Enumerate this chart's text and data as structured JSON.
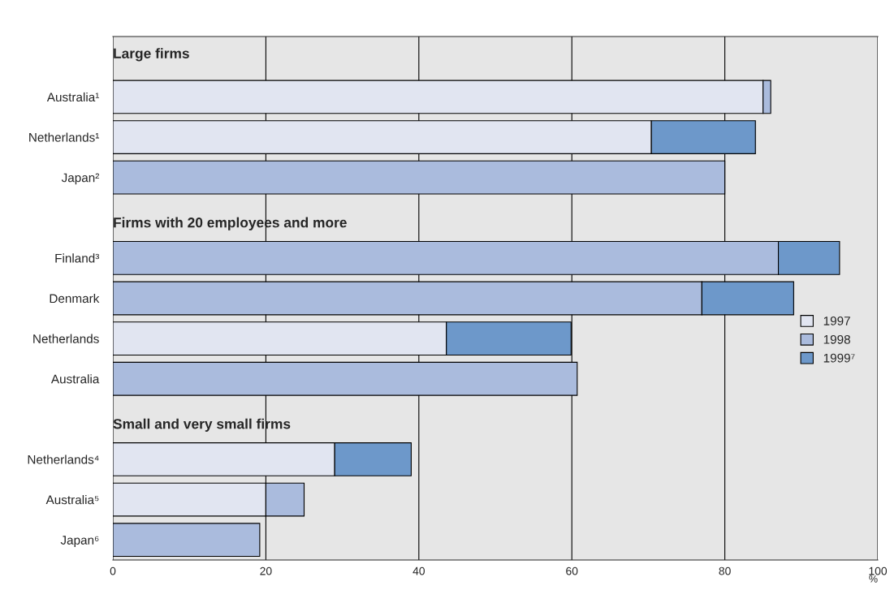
{
  "chart_data": {
    "type": "bar",
    "orientation": "horizontal",
    "stacked": true,
    "categories": [
      null,
      "Australia¹",
      "Netherlands¹",
      "Japan²",
      null,
      "Finland³",
      "Denmark",
      "Netherlands",
      "Australia",
      null,
      "Netherlands⁴",
      "Australia⁵",
      "Japan⁶"
    ],
    "series": [
      {
        "name": "1997",
        "color": "#e1e5f1",
        "values": [
          null,
          85,
          70.4,
          null,
          null,
          null,
          null,
          43.6,
          null,
          null,
          29,
          20,
          null
        ]
      },
      {
        "name": "1998",
        "color": "#aabbdd",
        "values": [
          null,
          1,
          null,
          80,
          null,
          87,
          77,
          null,
          60.7,
          null,
          null,
          5,
          19.2
        ]
      },
      {
        "name": "1999⁷",
        "color": "#6d98ca",
        "values": [
          null,
          null,
          13.6,
          null,
          null,
          8,
          12,
          16.3,
          null,
          null,
          10,
          null,
          null
        ]
      }
    ],
    "annotations": [
      "Large firms",
      "Firms with 20 employees and more",
      "Small and very small firms"
    ],
    "xlabel": "%",
    "xlim": [
      0,
      100
    ],
    "xticks": [
      0,
      20,
      40,
      60,
      80,
      100
    ],
    "grid": "x",
    "legend": "center right"
  }
}
